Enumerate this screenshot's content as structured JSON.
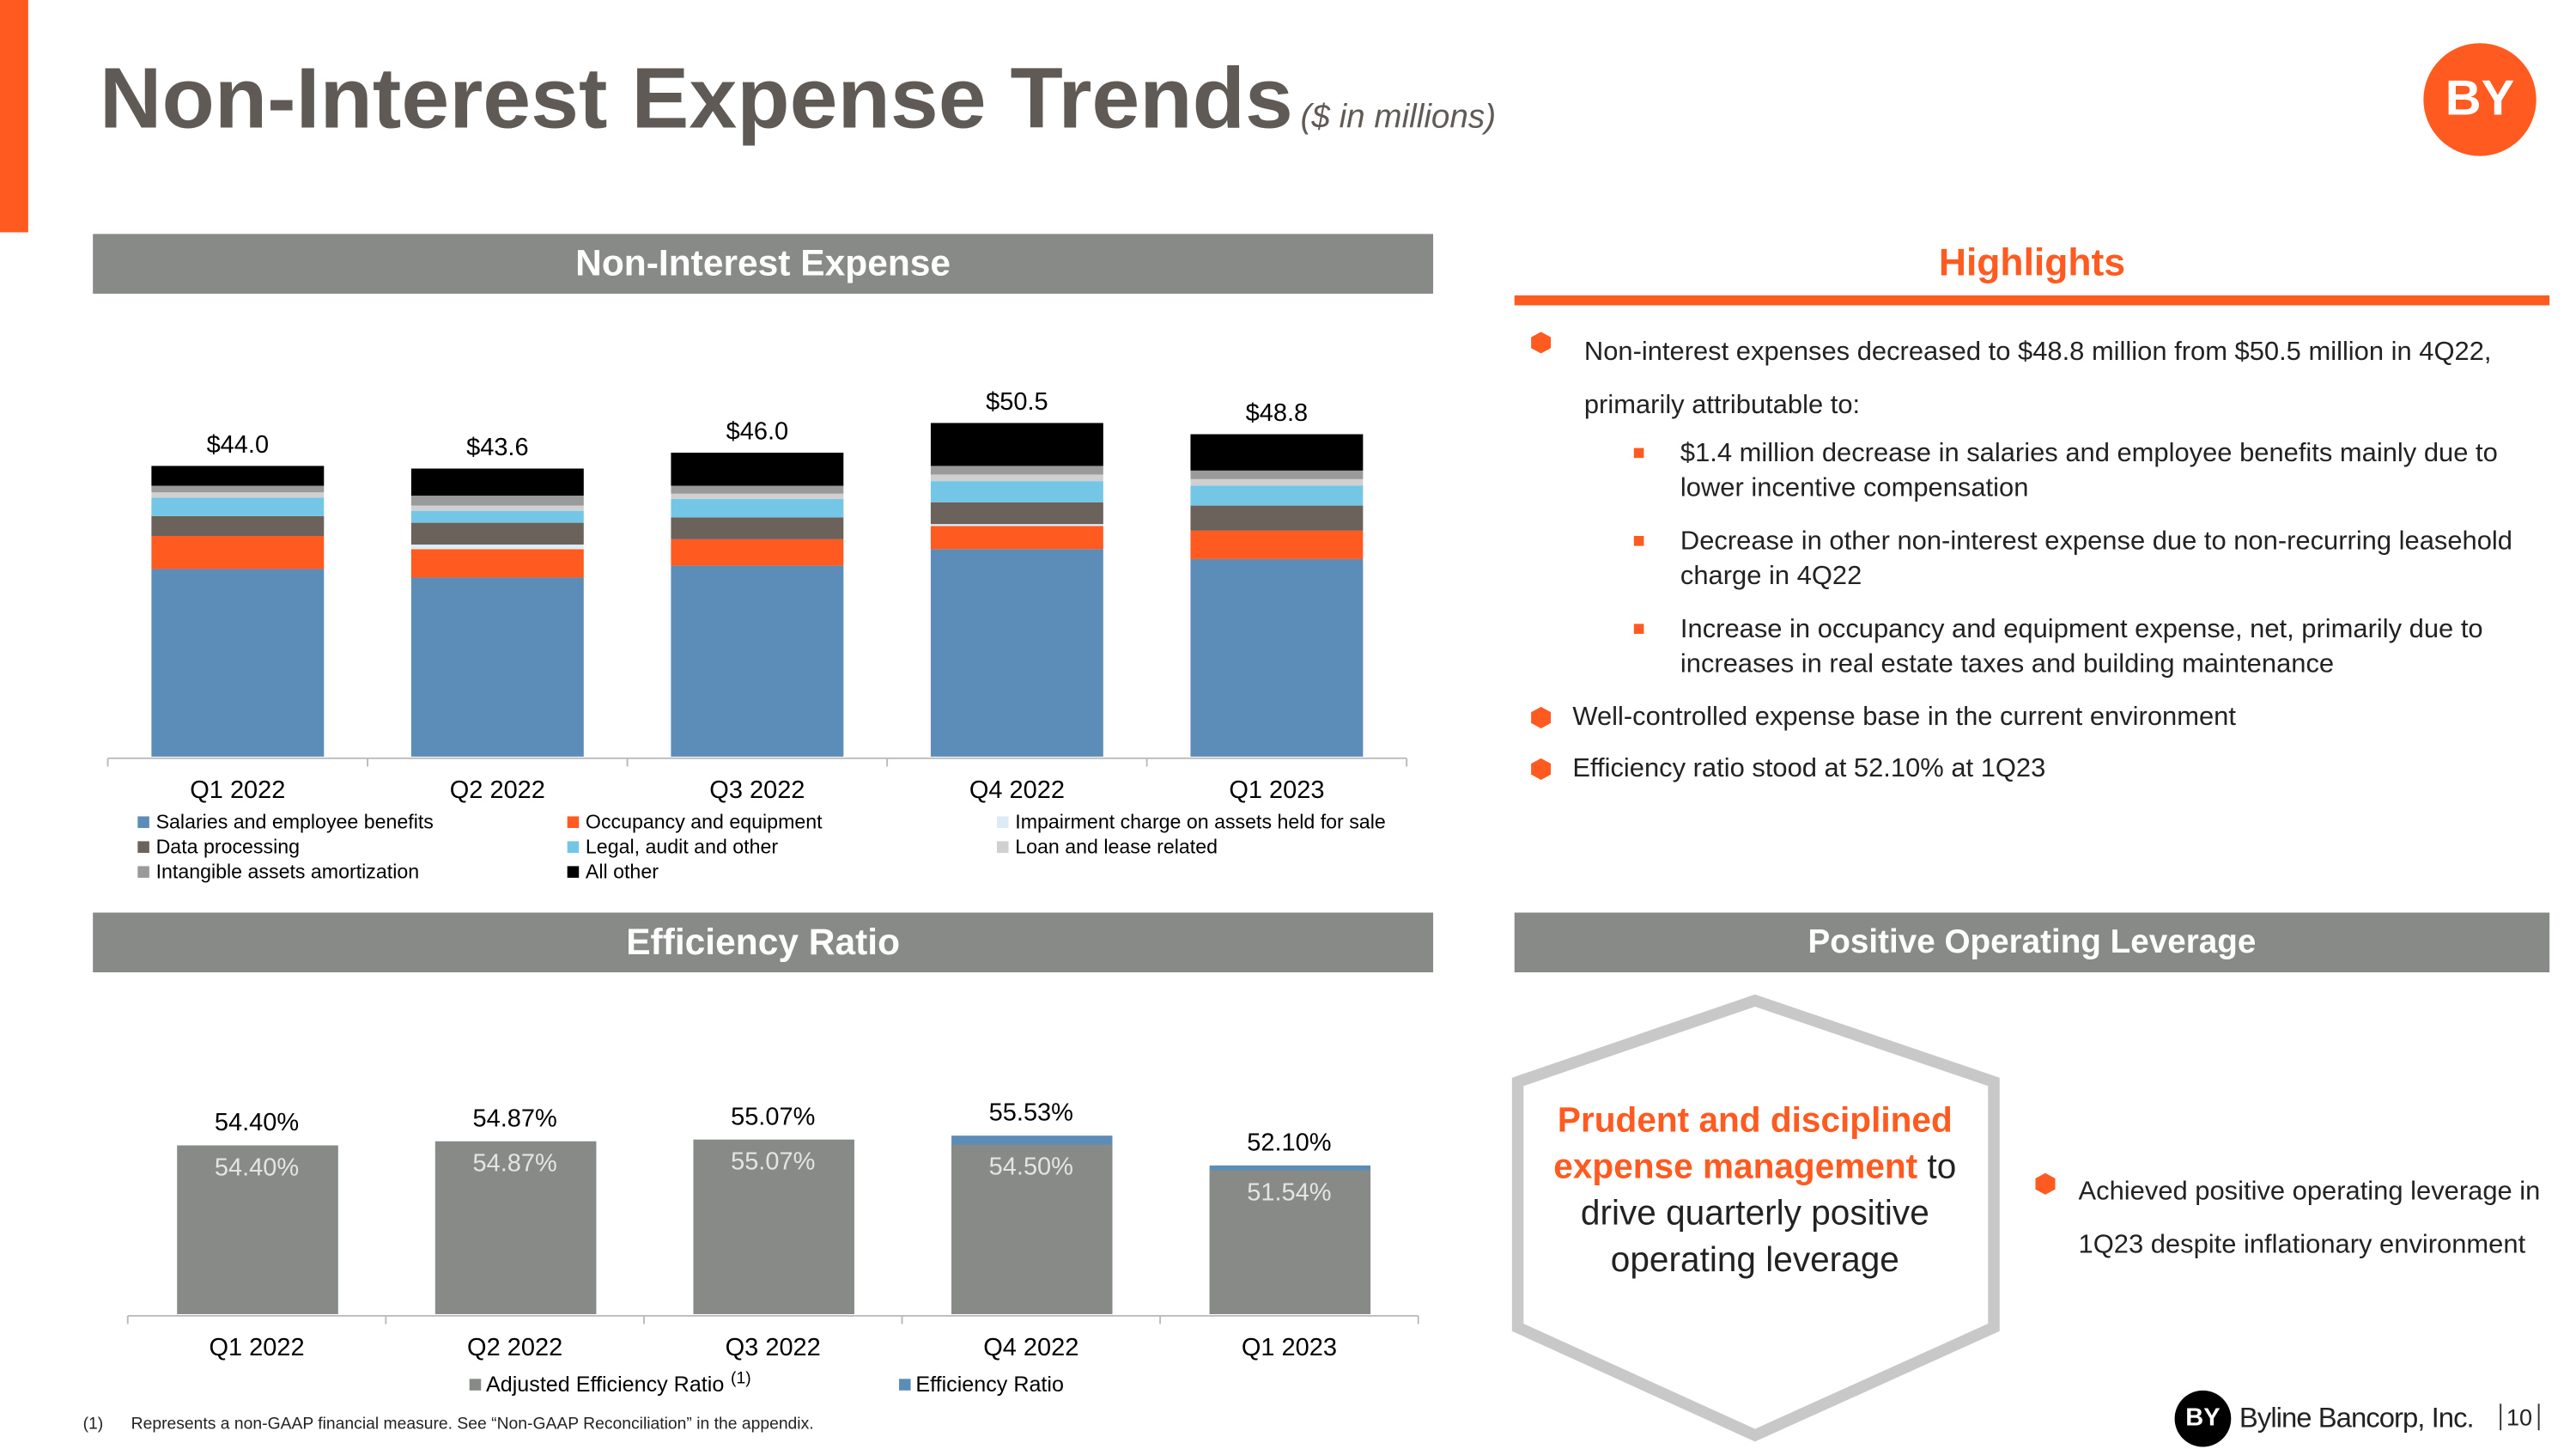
{
  "title": "Non-Interest Expense Trends",
  "subtitle": "($ in millions)",
  "logo": "BY",
  "sections": {
    "expense": "Non-Interest Expense",
    "efficiency": "Efficiency Ratio",
    "highlights": "Highlights",
    "leverage": "Positive Operating Leverage"
  },
  "highlights": [
    "Non-interest expenses decreased to $48.8 million from $50.5 million in 4Q22, primarily attributable to:",
    "Well-controlled expense base in the current environment",
    "Efficiency ratio stood at 52.10% at 1Q23"
  ],
  "highlight_details": [
    "$1.4 million decrease in salaries and employee benefits mainly due to lower incentive compensation",
    "Decrease in other non-interest expense due to non-recurring leasehold charge in 4Q22",
    "Increase in occupancy and equipment expense, net, primarily due to increases in real estate taxes and building maintenance"
  ],
  "leverage_callout": {
    "emphasis": "Prudent and disciplined expense management",
    "rest": "to drive quarterly positive operating leverage"
  },
  "leverage_points": [
    "Achieved positive operating leverage in 1Q23 despite inflationary environment"
  ],
  "footnote": {
    "marker": "(1)",
    "text": "Represents a non-GAAP financial measure.  See “Non-GAAP Reconciliation” in the appendix."
  },
  "company": "Byline Bancorp, Inc.",
  "page": "10",
  "chart_data": [
    {
      "type": "stacked_bar",
      "categories": [
        "Q1 2022",
        "Q2 2022",
        "Q3 2022",
        "Q4 2022",
        "Q1 2023"
      ],
      "ylim": [
        0,
        55
      ],
      "totals": [
        44.0,
        43.6,
        46.0,
        50.5,
        48.8
      ],
      "total_labels": [
        "$44.0",
        "$43.6",
        "$46.0",
        "$50.5",
        "$48.8"
      ],
      "series": [
        {
          "name": "Salaries and employee benefits",
          "color": "#5b8db8",
          "values": [
            28.4,
            27.1,
            28.9,
            31.4,
            29.9
          ]
        },
        {
          "name": "Occupancy and equipment",
          "color": "#ff5a1f",
          "values": [
            5.0,
            4.3,
            4.0,
            3.5,
            4.3
          ]
        },
        {
          "name": "Impairment charge on assets held for sale",
          "color": "#ddebf7",
          "values": [
            0,
            0.7,
            0,
            0.3,
            0
          ]
        },
        {
          "name": "Data processing",
          "color": "#6b625c",
          "values": [
            3.0,
            3.3,
            3.3,
            3.3,
            3.8
          ]
        },
        {
          "name": "Legal, audit and other",
          "color": "#73c6e6",
          "values": [
            2.8,
            1.8,
            2.8,
            3.2,
            3.0
          ]
        },
        {
          "name": "Loan and lease related",
          "color": "#d0d0d0",
          "values": [
            0.8,
            0.8,
            0.8,
            1.0,
            1.0
          ]
        },
        {
          "name": "Intangible assets amortization",
          "color": "#9a9a9a",
          "values": [
            1.0,
            1.5,
            1.2,
            1.3,
            1.3
          ]
        },
        {
          "name": "All other",
          "color": "#000000",
          "values": [
            3.0,
            4.1,
            5.0,
            6.5,
            5.5
          ]
        }
      ]
    },
    {
      "type": "overlap_bar",
      "categories": [
        "Q1 2022",
        "Q2 2022",
        "Q3 2022",
        "Q4 2022",
        "Q1 2023"
      ],
      "ylim": [
        35,
        60
      ],
      "series": [
        {
          "name": "Adjusted Efficiency Ratio",
          "note": "(1)",
          "color": "#878a87",
          "values": [
            54.4,
            54.87,
            55.07,
            54.5,
            51.54
          ],
          "value_labels": [
            "54.40%",
            "54.87%",
            "55.07%",
            "54.50%",
            "51.54%"
          ]
        },
        {
          "name": "Efficiency Ratio",
          "color": "#5b8db8",
          "values": [
            54.4,
            54.87,
            55.07,
            55.53,
            52.1
          ],
          "value_labels": [
            "54.40%",
            "54.87%",
            "55.07%",
            "55.53%",
            "52.10%"
          ]
        }
      ]
    }
  ]
}
